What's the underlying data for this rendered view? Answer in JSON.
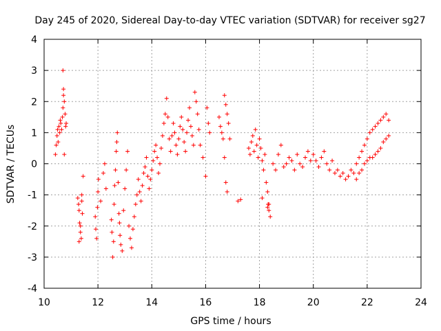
{
  "chart_data": {
    "type": "scatter",
    "title": "Day 245 of 2020, Sidereal Day-to-day VTEC variation (SDTVAR) for receiver sg27",
    "xlabel": "GPS time / hours",
    "ylabel": "SDTVAR / TECUs",
    "xlim": [
      10,
      24
    ],
    "ylim": [
      -4,
      4
    ],
    "x_ticks": [
      10,
      12,
      14,
      16,
      18,
      20,
      22,
      24
    ],
    "y_ticks": [
      -4,
      -3,
      -2,
      -1,
      0,
      1,
      2,
      3,
      4
    ],
    "grid": true,
    "marker": "plus",
    "color": "#ff0000",
    "series": [
      {
        "name": "SDTVAR",
        "x": [
          10.42,
          10.45,
          10.48,
          10.5,
          10.52,
          10.55,
          10.58,
          10.6,
          10.62,
          10.65,
          10.68,
          10.7,
          10.72,
          10.75,
          10.78,
          10.8,
          10.82,
          10.7,
          10.72,
          10.75,
          11.25,
          11.28,
          11.3,
          11.32,
          11.35,
          11.38,
          11.4,
          11.42,
          11.45,
          11.3,
          11.35,
          11.4,
          11.9,
          11.92,
          11.95,
          11.98,
          12.0,
          12.02,
          12.1,
          12.2,
          12.25,
          12.3,
          12.5,
          12.52,
          12.55,
          12.58,
          12.6,
          12.62,
          12.65,
          12.68,
          12.7,
          12.72,
          12.75,
          12.78,
          12.8,
          12.82,
          12.85,
          12.9,
          12.95,
          13.0,
          13.05,
          13.1,
          13.15,
          13.2,
          13.25,
          13.3,
          13.35,
          13.4,
          13.45,
          13.5,
          13.55,
          13.6,
          13.65,
          13.7,
          13.75,
          13.8,
          13.85,
          13.9,
          13.95,
          14.0,
          14.05,
          14.1,
          14.15,
          14.2,
          14.25,
          14.3,
          14.35,
          14.4,
          14.45,
          14.5,
          14.55,
          14.6,
          14.65,
          14.7,
          14.75,
          14.8,
          14.85,
          14.9,
          14.95,
          15.0,
          15.05,
          15.1,
          15.15,
          15.2,
          15.25,
          15.3,
          15.35,
          15.4,
          15.45,
          15.5,
          15.55,
          15.6,
          15.65,
          15.7,
          15.75,
          15.8,
          15.9,
          16.0,
          16.05,
          16.1,
          16.15,
          16.5,
          16.55,
          16.6,
          16.65,
          16.7,
          16.75,
          16.8,
          16.85,
          16.9,
          16.7,
          16.75,
          16.8,
          17.2,
          17.6,
          17.65,
          17.7,
          17.75,
          17.8,
          17.85,
          17.9,
          17.95,
          18.0,
          18.05,
          18.1,
          18.15,
          18.2,
          18.25,
          18.3,
          18.35,
          18.4,
          18.5,
          18.6,
          18.7,
          18.8,
          18.9,
          19.0,
          19.1,
          19.2,
          19.3,
          19.4,
          19.5,
          19.6,
          19.7,
          19.8,
          19.9,
          20.0,
          20.1,
          20.2,
          20.3,
          20.4,
          20.5,
          20.6,
          20.7,
          20.8,
          20.9,
          21.0,
          21.1,
          21.2,
          21.3,
          21.4,
          21.5,
          21.6,
          21.7,
          21.8,
          21.9,
          22.0,
          22.1,
          22.2,
          22.3,
          22.4,
          22.5,
          22.6,
          22.7,
          22.8,
          21.6,
          21.7,
          21.8,
          21.9,
          22.0,
          22.1,
          22.2,
          22.3,
          22.4,
          22.5,
          22.6,
          22.7,
          22.8,
          18.3,
          18.32,
          18.35,
          18.1,
          17.3
        ],
        "y": [
          0.3,
          0.6,
          0.9,
          1.1,
          0.7,
          1.2,
          1.0,
          1.4,
          1.3,
          1.1,
          1.5,
          3.0,
          2.4,
          2.0,
          1.6,
          1.2,
          1.3,
          1.8,
          2.2,
          0.3,
          -1.1,
          -1.3,
          -1.5,
          -1.9,
          -2.2,
          -2.4,
          -1.0,
          -1.6,
          -0.4,
          -2.5,
          -2.0,
          -1.2,
          -1.7,
          -2.1,
          -2.4,
          -1.4,
          -0.9,
          -0.5,
          -1.2,
          -0.3,
          0.0,
          -0.8,
          -1.8,
          -2.2,
          -3.0,
          -2.5,
          -1.3,
          -0.7,
          -0.2,
          0.4,
          0.7,
          1.0,
          -0.6,
          -1.6,
          -1.9,
          -2.3,
          -2.6,
          -2.8,
          -1.5,
          -0.8,
          -0.2,
          0.4,
          -2.0,
          -2.4,
          -2.7,
          -2.1,
          -1.7,
          -1.3,
          -1.0,
          -0.5,
          -0.9,
          -1.2,
          -0.7,
          -0.3,
          -0.1,
          0.2,
          -0.4,
          -0.8,
          -0.5,
          -0.2,
          0.1,
          0.4,
          0.6,
          0.2,
          -0.3,
          0.0,
          0.5,
          0.9,
          1.3,
          1.6,
          2.1,
          1.5,
          0.8,
          0.4,
          0.9,
          1.3,
          1.0,
          0.6,
          0.3,
          0.8,
          1.2,
          1.5,
          1.1,
          0.7,
          0.4,
          1.0,
          1.4,
          1.8,
          1.2,
          0.9,
          0.6,
          2.3,
          2.0,
          1.6,
          1.1,
          0.6,
          0.2,
          -0.4,
          1.8,
          1.3,
          1.0,
          1.5,
          1.2,
          1.0,
          0.8,
          2.2,
          1.9,
          1.6,
          1.3,
          0.8,
          0.2,
          -0.6,
          -0.9,
          -1.2,
          0.5,
          0.3,
          0.7,
          0.9,
          0.4,
          1.1,
          0.6,
          0.2,
          0.8,
          0.5,
          0.1,
          -0.2,
          0.3,
          -0.6,
          -0.9,
          -1.3,
          -1.7,
          0.0,
          -0.2,
          0.3,
          0.6,
          -0.1,
          0.0,
          0.2,
          0.1,
          -0.2,
          0.3,
          0.0,
          -0.1,
          0.2,
          0.4,
          0.1,
          0.3,
          0.1,
          -0.1,
          0.2,
          0.4,
          0.0,
          -0.2,
          0.1,
          -0.3,
          -0.2,
          -0.4,
          -0.3,
          -0.5,
          -0.4,
          -0.2,
          -0.3,
          0.0,
          0.2,
          0.4,
          0.6,
          0.8,
          1.0,
          1.1,
          1.2,
          1.3,
          1.4,
          1.5,
          1.6,
          1.4,
          -0.5,
          -0.3,
          -0.2,
          0.0,
          0.1,
          0.2,
          0.2,
          0.3,
          0.4,
          0.5,
          0.7,
          0.8,
          0.9,
          -1.4,
          -1.3,
          -1.5,
          -1.1,
          -1.15
        ]
      }
    ]
  }
}
